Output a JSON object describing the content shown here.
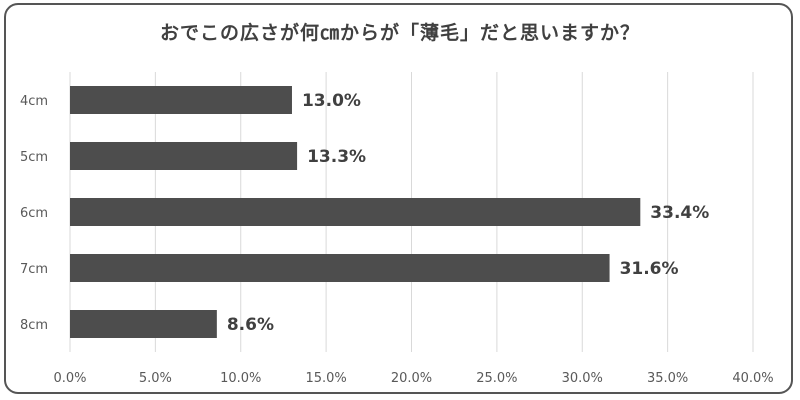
{
  "chart_data": {
    "type": "bar",
    "orientation": "horizontal",
    "title": "おでこの広さが何㎝からが「薄毛」だと思いますか？",
    "categories": [
      "4cm",
      "5cm",
      "6cm",
      "7cm",
      "8cm"
    ],
    "values": [
      13.0,
      13.3,
      33.4,
      31.6,
      8.6
    ],
    "value_labels": [
      "13.0%",
      "13.3%",
      "33.4%",
      "31.6%",
      "8.6%"
    ],
    "xlim": [
      0,
      40
    ],
    "x_ticks": [
      0,
      5,
      10,
      15,
      20,
      25,
      30,
      35,
      40
    ],
    "x_tick_labels": [
      "0.0%",
      "5.0%",
      "10.0%",
      "15.0%",
      "20.0%",
      "25.0%",
      "30.0%",
      "35.0%",
      "40.0%"
    ],
    "grid": "vertical",
    "legend": "none",
    "colors": {
      "bar": "#4d4d4d",
      "grid": "#d9d9d9",
      "text": "#404040",
      "border": "#555555"
    }
  }
}
